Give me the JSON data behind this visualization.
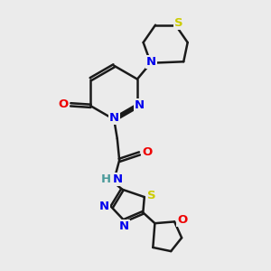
{
  "bg_color": "#ebebeb",
  "bond_color": "#1a1a1a",
  "bond_width": 1.8,
  "dbo": 0.055,
  "atom_colors": {
    "N": "#0000ee",
    "O": "#ee0000",
    "S": "#cccc00",
    "H": "#4a9a9a",
    "C": "#1a1a1a"
  },
  "fs": 9.5
}
